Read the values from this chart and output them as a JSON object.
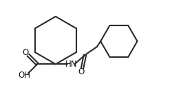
{
  "background_color": "#ffffff",
  "line_color": "#2a2a2a",
  "line_width": 1.5,
  "text_color": "#1a1a1a",
  "font_size": 8.5,
  "figsize": [
    2.79,
    1.6
  ],
  "dpi": 100,
  "xlim": [
    0,
    10
  ],
  "ylim": [
    0,
    6
  ]
}
